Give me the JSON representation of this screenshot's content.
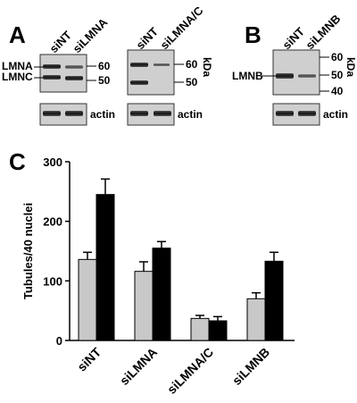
{
  "panels": {
    "A": {
      "letter": "A",
      "blot1": {
        "lanes": [
          "siNT",
          "siLMNA"
        ],
        "band_labels": [
          "LMNA",
          "LMNC"
        ],
        "mw_markers": [
          "60",
          "50"
        ],
        "loading_label": "actin"
      },
      "blot2": {
        "lanes": [
          "siNT",
          "siLMNA/C"
        ],
        "mw_markers": [
          "60",
          "50"
        ],
        "unit": "kDa",
        "loading_label": "actin"
      }
    },
    "B": {
      "letter": "B",
      "lanes": [
        "siNT",
        "siLMNB"
      ],
      "band_labels": [
        "LMNB"
      ],
      "mw_markers": [
        "60",
        "50",
        "40"
      ],
      "unit": "kDa",
      "loading_label": "actin"
    },
    "C": {
      "letter": "C"
    }
  },
  "chart_data": {
    "type": "bar",
    "title": "",
    "xlabel": "",
    "ylabel": "Tubules/40 nuclei",
    "categories": [
      "siNT",
      "siLMNA",
      "siLMNA/C",
      "siLMNB"
    ],
    "series": [
      {
        "values": [
          136,
          116,
          37,
          70
        ],
        "errors": [
          12,
          16,
          5,
          10
        ],
        "color": "#c8c8c8"
      },
      {
        "values": [
          245,
          155,
          33,
          133
        ],
        "errors": [
          26,
          11,
          7,
          15
        ],
        "color": "#000000"
      }
    ],
    "ylim": [
      0,
      300
    ],
    "yticks": [
      "0",
      "100",
      "200",
      "300"
    ],
    "grid": false
  }
}
